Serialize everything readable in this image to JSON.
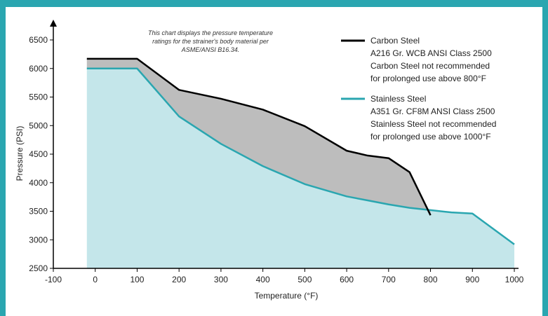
{
  "colors": {
    "frame": "#2aa6b0",
    "carbon_line": "#000000",
    "stainless_line": "#2aa6b0",
    "stainless_fill": "#c4e6ea",
    "carbon_fill": "#bdbdbd"
  },
  "note_lines": [
    "This chart displays the pressure temperature",
    "ratings for the strainer's body material per",
    "ASME/ANSI B16.34."
  ],
  "legend": {
    "carbon": [
      "Carbon Steel",
      "A216 Gr. WCB ANSI Class 2500",
      "Carbon Steel not recommended",
      "for prolonged use above 800°F"
    ],
    "stainless": [
      "Stainless Steel",
      "A351 Gr. CF8M ANSI Class 2500",
      "Stainless Steel not recommended",
      "for prolonged use above 1000°F"
    ]
  },
  "chart_data": {
    "type": "area",
    "xlabel": "Temperature (°F)",
    "ylabel": "Pressure (PSI)",
    "xlim": [
      -100,
      1000
    ],
    "ylim": [
      2500,
      6500
    ],
    "x_ticks": [
      "-100",
      "0",
      "100",
      "200",
      "300",
      "400",
      "500",
      "600",
      "700",
      "800",
      "900",
      "1000"
    ],
    "y_ticks": [
      "2500",
      "3000",
      "3500",
      "4000",
      "4500",
      "5000",
      "5500",
      "6000",
      "6500"
    ],
    "series": [
      {
        "name": "Carbon Steel",
        "x": [
          -20,
          100,
          200,
          300,
          400,
          500,
          600,
          650,
          700,
          750,
          800
        ],
        "y": [
          6170,
          6170,
          5625,
          5470,
          5280,
          4990,
          4560,
          4475,
          4430,
          4185,
          3430
        ]
      },
      {
        "name": "Stainless Steel",
        "x": [
          -20,
          100,
          200,
          300,
          400,
          500,
          600,
          650,
          700,
          750,
          800,
          850,
          900,
          1000
        ],
        "y": [
          6000,
          6000,
          5160,
          4680,
          4290,
          3975,
          3760,
          3690,
          3620,
          3560,
          3520,
          3480,
          3460,
          2920
        ]
      }
    ]
  }
}
